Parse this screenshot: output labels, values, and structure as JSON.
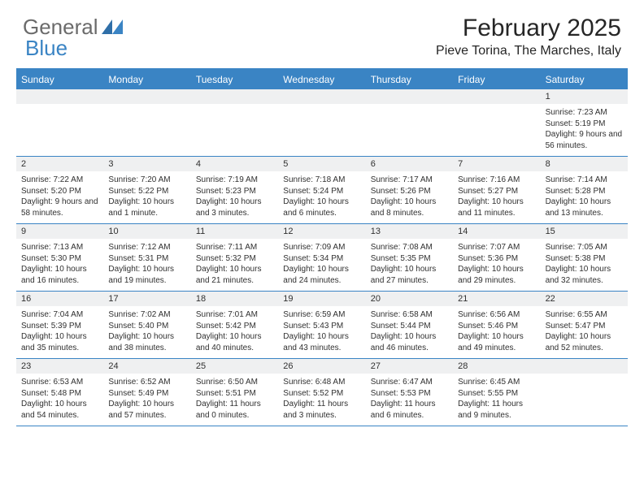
{
  "brand": {
    "part1": "General",
    "part2": "Blue"
  },
  "title": "February 2025",
  "location": "Pieve Torina, The Marches, Italy",
  "colors": {
    "accent": "#3a84c4",
    "header_bg": "#3a84c4",
    "header_text": "#ffffff",
    "datebar_bg": "#eff0f1",
    "text": "#303030",
    "logo_gray": "#6b6b6b"
  },
  "dow": [
    "Sunday",
    "Monday",
    "Tuesday",
    "Wednesday",
    "Thursday",
    "Friday",
    "Saturday"
  ],
  "weeks": [
    [
      {
        "n": "",
        "sunrise": "",
        "sunset": "",
        "daylight": ""
      },
      {
        "n": "",
        "sunrise": "",
        "sunset": "",
        "daylight": ""
      },
      {
        "n": "",
        "sunrise": "",
        "sunset": "",
        "daylight": ""
      },
      {
        "n": "",
        "sunrise": "",
        "sunset": "",
        "daylight": ""
      },
      {
        "n": "",
        "sunrise": "",
        "sunset": "",
        "daylight": ""
      },
      {
        "n": "",
        "sunrise": "",
        "sunset": "",
        "daylight": ""
      },
      {
        "n": "1",
        "sunrise": "Sunrise: 7:23 AM",
        "sunset": "Sunset: 5:19 PM",
        "daylight": "Daylight: 9 hours and 56 minutes."
      }
    ],
    [
      {
        "n": "2",
        "sunrise": "Sunrise: 7:22 AM",
        "sunset": "Sunset: 5:20 PM",
        "daylight": "Daylight: 9 hours and 58 minutes."
      },
      {
        "n": "3",
        "sunrise": "Sunrise: 7:20 AM",
        "sunset": "Sunset: 5:22 PM",
        "daylight": "Daylight: 10 hours and 1 minute."
      },
      {
        "n": "4",
        "sunrise": "Sunrise: 7:19 AM",
        "sunset": "Sunset: 5:23 PM",
        "daylight": "Daylight: 10 hours and 3 minutes."
      },
      {
        "n": "5",
        "sunrise": "Sunrise: 7:18 AM",
        "sunset": "Sunset: 5:24 PM",
        "daylight": "Daylight: 10 hours and 6 minutes."
      },
      {
        "n": "6",
        "sunrise": "Sunrise: 7:17 AM",
        "sunset": "Sunset: 5:26 PM",
        "daylight": "Daylight: 10 hours and 8 minutes."
      },
      {
        "n": "7",
        "sunrise": "Sunrise: 7:16 AM",
        "sunset": "Sunset: 5:27 PM",
        "daylight": "Daylight: 10 hours and 11 minutes."
      },
      {
        "n": "8",
        "sunrise": "Sunrise: 7:14 AM",
        "sunset": "Sunset: 5:28 PM",
        "daylight": "Daylight: 10 hours and 13 minutes."
      }
    ],
    [
      {
        "n": "9",
        "sunrise": "Sunrise: 7:13 AM",
        "sunset": "Sunset: 5:30 PM",
        "daylight": "Daylight: 10 hours and 16 minutes."
      },
      {
        "n": "10",
        "sunrise": "Sunrise: 7:12 AM",
        "sunset": "Sunset: 5:31 PM",
        "daylight": "Daylight: 10 hours and 19 minutes."
      },
      {
        "n": "11",
        "sunrise": "Sunrise: 7:11 AM",
        "sunset": "Sunset: 5:32 PM",
        "daylight": "Daylight: 10 hours and 21 minutes."
      },
      {
        "n": "12",
        "sunrise": "Sunrise: 7:09 AM",
        "sunset": "Sunset: 5:34 PM",
        "daylight": "Daylight: 10 hours and 24 minutes."
      },
      {
        "n": "13",
        "sunrise": "Sunrise: 7:08 AM",
        "sunset": "Sunset: 5:35 PM",
        "daylight": "Daylight: 10 hours and 27 minutes."
      },
      {
        "n": "14",
        "sunrise": "Sunrise: 7:07 AM",
        "sunset": "Sunset: 5:36 PM",
        "daylight": "Daylight: 10 hours and 29 minutes."
      },
      {
        "n": "15",
        "sunrise": "Sunrise: 7:05 AM",
        "sunset": "Sunset: 5:38 PM",
        "daylight": "Daylight: 10 hours and 32 minutes."
      }
    ],
    [
      {
        "n": "16",
        "sunrise": "Sunrise: 7:04 AM",
        "sunset": "Sunset: 5:39 PM",
        "daylight": "Daylight: 10 hours and 35 minutes."
      },
      {
        "n": "17",
        "sunrise": "Sunrise: 7:02 AM",
        "sunset": "Sunset: 5:40 PM",
        "daylight": "Daylight: 10 hours and 38 minutes."
      },
      {
        "n": "18",
        "sunrise": "Sunrise: 7:01 AM",
        "sunset": "Sunset: 5:42 PM",
        "daylight": "Daylight: 10 hours and 40 minutes."
      },
      {
        "n": "19",
        "sunrise": "Sunrise: 6:59 AM",
        "sunset": "Sunset: 5:43 PM",
        "daylight": "Daylight: 10 hours and 43 minutes."
      },
      {
        "n": "20",
        "sunrise": "Sunrise: 6:58 AM",
        "sunset": "Sunset: 5:44 PM",
        "daylight": "Daylight: 10 hours and 46 minutes."
      },
      {
        "n": "21",
        "sunrise": "Sunrise: 6:56 AM",
        "sunset": "Sunset: 5:46 PM",
        "daylight": "Daylight: 10 hours and 49 minutes."
      },
      {
        "n": "22",
        "sunrise": "Sunrise: 6:55 AM",
        "sunset": "Sunset: 5:47 PM",
        "daylight": "Daylight: 10 hours and 52 minutes."
      }
    ],
    [
      {
        "n": "23",
        "sunrise": "Sunrise: 6:53 AM",
        "sunset": "Sunset: 5:48 PM",
        "daylight": "Daylight: 10 hours and 54 minutes."
      },
      {
        "n": "24",
        "sunrise": "Sunrise: 6:52 AM",
        "sunset": "Sunset: 5:49 PM",
        "daylight": "Daylight: 10 hours and 57 minutes."
      },
      {
        "n": "25",
        "sunrise": "Sunrise: 6:50 AM",
        "sunset": "Sunset: 5:51 PM",
        "daylight": "Daylight: 11 hours and 0 minutes."
      },
      {
        "n": "26",
        "sunrise": "Sunrise: 6:48 AM",
        "sunset": "Sunset: 5:52 PM",
        "daylight": "Daylight: 11 hours and 3 minutes."
      },
      {
        "n": "27",
        "sunrise": "Sunrise: 6:47 AM",
        "sunset": "Sunset: 5:53 PM",
        "daylight": "Daylight: 11 hours and 6 minutes."
      },
      {
        "n": "28",
        "sunrise": "Sunrise: 6:45 AM",
        "sunset": "Sunset: 5:55 PM",
        "daylight": "Daylight: 11 hours and 9 minutes."
      },
      {
        "n": "",
        "sunrise": "",
        "sunset": "",
        "daylight": ""
      }
    ]
  ]
}
